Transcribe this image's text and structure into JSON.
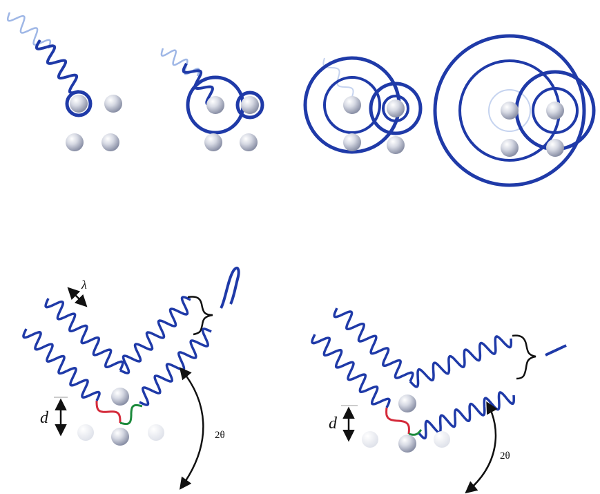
{
  "figure": {
    "panels_top": [
      {
        "name": "incoming-wave"
      },
      {
        "name": "first-scatter"
      },
      {
        "name": "spherical-wavelets"
      },
      {
        "name": "expanded-wavelets"
      }
    ],
    "panels_bottom": [
      {
        "name": "constructive-interference"
      },
      {
        "name": "destructive-interference"
      }
    ]
  },
  "labels": {
    "lambda": "λ",
    "d_left": "d",
    "d_right": "d",
    "two_theta_left": "2θ",
    "two_theta_right": "2θ"
  },
  "colors": {
    "wave_dark": "#1f3aa8",
    "wave_faint": "#9fb7e6",
    "ring": "#1f3aa8",
    "atom_fill": "#c9ccd8",
    "path_red": "#d42a3a",
    "path_green": "#1c8a3c",
    "arrow": "#111111"
  }
}
